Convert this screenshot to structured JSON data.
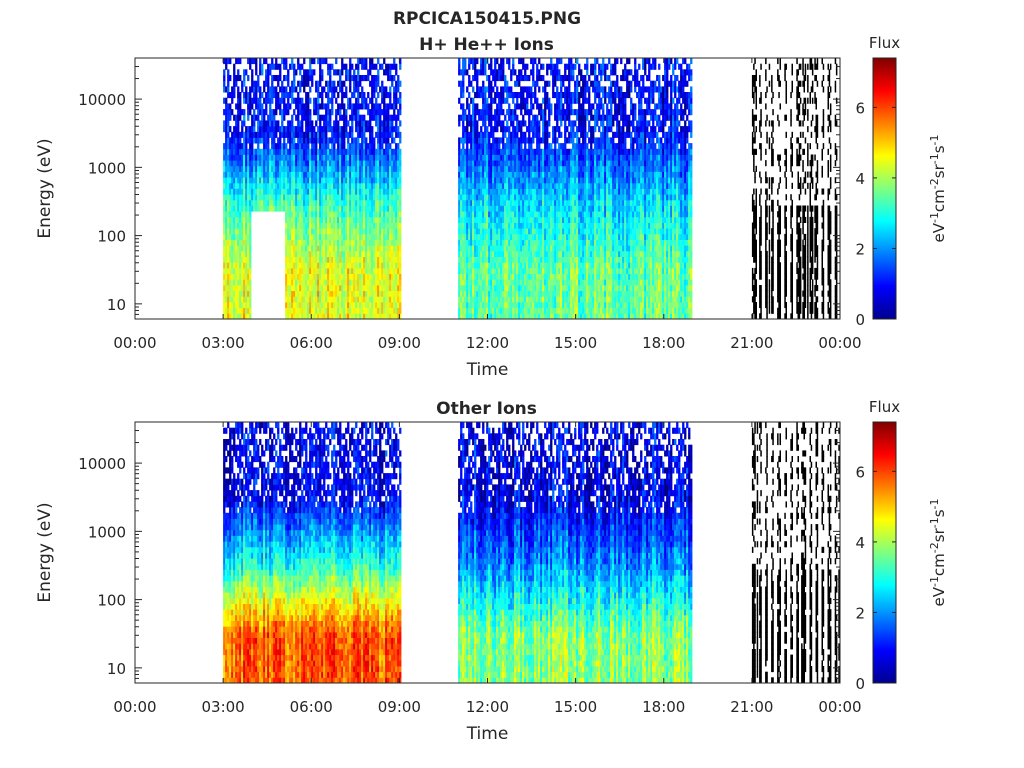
{
  "figure": {
    "title": "RPCICA150415.PNG"
  },
  "chart_data": [
    {
      "type": "heatmap",
      "title": "H+ He++ Ions",
      "xlabel": "Time",
      "ylabel": "Energy (eV)",
      "x_ticks": [
        "00:00",
        "03:00",
        "06:00",
        "09:00",
        "12:00",
        "15:00",
        "18:00",
        "21:00",
        "00:00"
      ],
      "x_range_hours": [
        0,
        24
      ],
      "y_scale": "log",
      "y_ticks": [
        "10",
        "100",
        "1000",
        "10000"
      ],
      "y_range": [
        6,
        40000
      ],
      "colorbar": {
        "label": "Flux",
        "unit_label": "eV-1cm-2sr-1s-1",
        "ticks": [
          "0",
          "2",
          "4",
          "6"
        ],
        "range": [
          0,
          7.4
        ],
        "colormap": "jet"
      },
      "data_segments": [
        {
          "start": "03:00",
          "end": "09:00",
          "flux_low_energy": 4.5,
          "flux_mid_energy": 3.2,
          "flux_high_energy": 1.0
        },
        {
          "start": "11:00",
          "end": "18:55",
          "flux_low_energy": 3.5,
          "flux_mid_energy": 2.5,
          "flux_high_energy": 1.0
        },
        {
          "start": "21:00",
          "end": "24:00",
          "type": "sparse",
          "flux_low_energy": 2.8
        }
      ],
      "gaps": [
        {
          "start": "03:55",
          "end": "05:05",
          "energy_below": 210
        }
      ]
    },
    {
      "type": "heatmap",
      "title": "Other Ions",
      "xlabel": "Time",
      "ylabel": "Energy (eV)",
      "x_ticks": [
        "00:00",
        "03:00",
        "06:00",
        "09:00",
        "12:00",
        "15:00",
        "18:00",
        "21:00",
        "00:00"
      ],
      "x_range_hours": [
        0,
        24
      ],
      "y_scale": "log",
      "y_ticks": [
        "10",
        "100",
        "1000",
        "10000"
      ],
      "y_range": [
        6,
        40000
      ],
      "colorbar": {
        "label": "Flux",
        "unit_label": "eV-1cm-2sr-1s-1",
        "ticks": [
          "0",
          "2",
          "4",
          "6"
        ],
        "range": [
          0,
          7.4
        ],
        "colormap": "jet"
      },
      "data_segments": [
        {
          "start": "03:00",
          "end": "09:00",
          "flux_low_energy": 5.8,
          "flux_mid_energy": 3.0,
          "flux_high_energy": 0.8
        },
        {
          "start": "11:00",
          "end": "18:55",
          "flux_low_energy": 3.8,
          "flux_mid_energy": 2.0,
          "flux_high_energy": 0.8
        },
        {
          "start": "21:00",
          "end": "24:00",
          "type": "sparse",
          "flux_low_energy": 4.5
        }
      ],
      "gaps": []
    }
  ]
}
